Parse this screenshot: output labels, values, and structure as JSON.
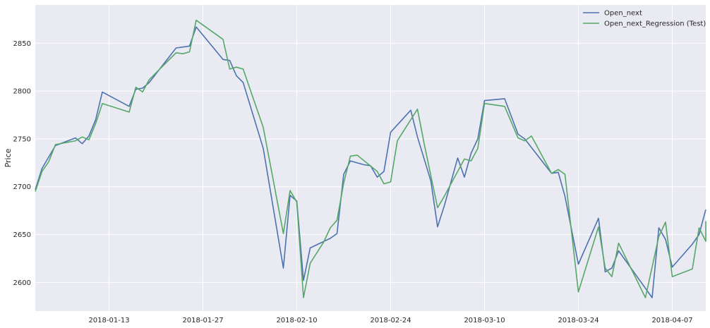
{
  "chart_data": {
    "type": "line",
    "xlabel": "",
    "ylabel": "Price",
    "xlim": [
      "2018-01-02",
      "2018-04-12"
    ],
    "ylim": [
      2570,
      2890
    ],
    "grid": true,
    "legend_position": "top-right",
    "x_ticks": [
      "2018-01-13",
      "2018-01-27",
      "2018-02-10",
      "2018-02-24",
      "2018-03-10",
      "2018-03-24",
      "2018-04-07"
    ],
    "y_ticks": [
      2600,
      2650,
      2700,
      2750,
      2800,
      2850
    ],
    "series": [
      {
        "name": "Open_next",
        "color": "#4c72b0",
        "points": [
          [
            "2018-01-02",
            2697
          ],
          [
            "2018-01-03",
            2719
          ],
          [
            "2018-01-05",
            2743
          ],
          [
            "2018-01-08",
            2751
          ],
          [
            "2018-01-09",
            2745
          ],
          [
            "2018-01-10",
            2753
          ],
          [
            "2018-01-11",
            2770
          ],
          [
            "2018-01-12",
            2799
          ],
          [
            "2018-01-16",
            2784
          ],
          [
            "2018-01-17",
            2802
          ],
          [
            "2018-01-18",
            2803
          ],
          [
            "2018-01-19",
            2809
          ],
          [
            "2018-01-23",
            2845
          ],
          [
            "2018-01-24",
            2846
          ],
          [
            "2018-01-25",
            2847
          ],
          [
            "2018-01-26",
            2867
          ],
          [
            "2018-01-30",
            2833
          ],
          [
            "2018-01-31",
            2832
          ],
          [
            "2018-02-01",
            2816
          ],
          [
            "2018-02-02",
            2809
          ],
          [
            "2018-02-05",
            2740
          ],
          [
            "2018-02-08",
            2615
          ],
          [
            "2018-02-09",
            2691
          ],
          [
            "2018-02-10",
            2685
          ],
          [
            "2018-02-11",
            2602
          ],
          [
            "2018-02-12",
            2636
          ],
          [
            "2018-02-15",
            2646
          ],
          [
            "2018-02-16",
            2651
          ],
          [
            "2018-02-17",
            2713
          ],
          [
            "2018-02-18",
            2727
          ],
          [
            "2018-02-20",
            2723
          ],
          [
            "2018-02-21",
            2722
          ],
          [
            "2018-02-22",
            2710
          ],
          [
            "2018-02-23",
            2716
          ],
          [
            "2018-02-24",
            2757
          ],
          [
            "2018-02-27",
            2780
          ],
          [
            "2018-02-28",
            2752
          ],
          [
            "2018-03-02",
            2706
          ],
          [
            "2018-03-03",
            2658
          ],
          [
            "2018-03-04",
            2680
          ],
          [
            "2018-03-06",
            2730
          ],
          [
            "2018-03-07",
            2710
          ],
          [
            "2018-03-08",
            2735
          ],
          [
            "2018-03-09",
            2750
          ],
          [
            "2018-03-10",
            2790
          ],
          [
            "2018-03-13",
            2792
          ],
          [
            "2018-03-15",
            2755
          ],
          [
            "2018-03-16",
            2750
          ],
          [
            "2018-03-20",
            2714
          ],
          [
            "2018-03-21",
            2715
          ],
          [
            "2018-03-22",
            2690
          ],
          [
            "2018-03-24",
            2619
          ],
          [
            "2018-03-27",
            2667
          ],
          [
            "2018-03-28",
            2611
          ],
          [
            "2018-03-29",
            2615
          ],
          [
            "2018-03-30",
            2633
          ],
          [
            "2018-04-04",
            2584
          ],
          [
            "2018-04-05",
            2657
          ],
          [
            "2018-04-06",
            2645
          ],
          [
            "2018-04-07",
            2616
          ],
          [
            "2018-04-10",
            2640
          ],
          [
            "2018-04-11",
            2650
          ],
          [
            "2018-04-12",
            2676
          ]
        ]
      },
      {
        "name": "Open_next_Regression (Test)",
        "color": "#55a868",
        "points": [
          [
            "2018-01-02",
            2695
          ],
          [
            "2018-01-03",
            2716
          ],
          [
            "2018-01-04",
            2726
          ],
          [
            "2018-01-05",
            2744
          ],
          [
            "2018-01-08",
            2748
          ],
          [
            "2018-01-09",
            2752
          ],
          [
            "2018-01-10",
            2749
          ],
          [
            "2018-01-11",
            2766
          ],
          [
            "2018-01-12",
            2787
          ],
          [
            "2018-01-16",
            2778
          ],
          [
            "2018-01-17",
            2804
          ],
          [
            "2018-01-18",
            2799
          ],
          [
            "2018-01-19",
            2812
          ],
          [
            "2018-01-23",
            2840
          ],
          [
            "2018-01-24",
            2839
          ],
          [
            "2018-01-25",
            2841
          ],
          [
            "2018-01-26",
            2874
          ],
          [
            "2018-01-30",
            2854
          ],
          [
            "2018-01-31",
            2823
          ],
          [
            "2018-02-01",
            2825
          ],
          [
            "2018-02-02",
            2823
          ],
          [
            "2018-02-05",
            2762
          ],
          [
            "2018-02-08",
            2651
          ],
          [
            "2018-02-09",
            2696
          ],
          [
            "2018-02-10",
            2684
          ],
          [
            "2018-02-11",
            2584
          ],
          [
            "2018-02-12",
            2620
          ],
          [
            "2018-02-14",
            2642
          ],
          [
            "2018-02-15",
            2657
          ],
          [
            "2018-02-16",
            2665
          ],
          [
            "2018-02-17",
            2704
          ],
          [
            "2018-02-18",
            2732
          ],
          [
            "2018-02-19",
            2733
          ],
          [
            "2018-02-22",
            2716
          ],
          [
            "2018-02-23",
            2703
          ],
          [
            "2018-02-24",
            2705
          ],
          [
            "2018-02-25",
            2748
          ],
          [
            "2018-02-28",
            2781
          ],
          [
            "2018-03-01",
            2745
          ],
          [
            "2018-03-03",
            2678
          ],
          [
            "2018-03-04",
            2690
          ],
          [
            "2018-03-06",
            2716
          ],
          [
            "2018-03-07",
            2729
          ],
          [
            "2018-03-08",
            2727
          ],
          [
            "2018-03-09",
            2740
          ],
          [
            "2018-03-10",
            2787
          ],
          [
            "2018-03-13",
            2784
          ],
          [
            "2018-03-15",
            2751
          ],
          [
            "2018-03-16",
            2748
          ],
          [
            "2018-03-17",
            2753
          ],
          [
            "2018-03-20",
            2714
          ],
          [
            "2018-03-21",
            2718
          ],
          [
            "2018-03-22",
            2713
          ],
          [
            "2018-03-24",
            2590
          ],
          [
            "2018-03-27",
            2658
          ],
          [
            "2018-03-28",
            2615
          ],
          [
            "2018-03-29",
            2606
          ],
          [
            "2018-03-30",
            2641
          ],
          [
            "2018-04-03",
            2584
          ],
          [
            "2018-04-05",
            2648
          ],
          [
            "2018-04-06",
            2663
          ],
          [
            "2018-04-07",
            2606
          ],
          [
            "2018-04-10",
            2614
          ],
          [
            "2018-04-11",
            2657
          ],
          [
            "2018-04-12",
            2643
          ],
          [
            "2018-04-13",
            2664
          ]
        ]
      }
    ]
  }
}
